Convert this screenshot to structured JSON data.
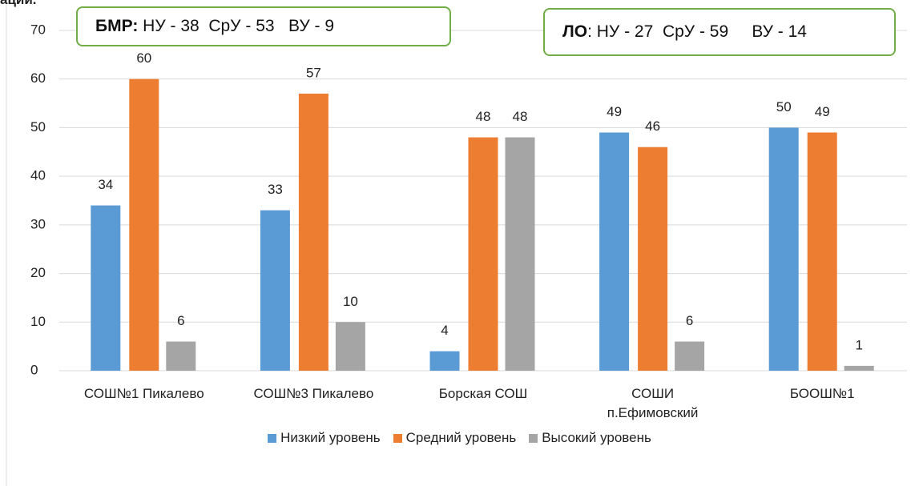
{
  "header_fragment": "ации.",
  "chart_data": {
    "type": "bar",
    "categories": [
      "СОШ№1 Пикалево",
      "СОШ№3 Пикалево",
      "Борская СОШ",
      "СОШИ\nп.Ефимовский",
      "БООШ№1"
    ],
    "series": [
      {
        "name": "Низкий уровень",
        "color": "#5b9bd5",
        "values": [
          34,
          33,
          4,
          49,
          50
        ]
      },
      {
        "name": "Средний уровень",
        "color": "#ed7d31",
        "values": [
          60,
          57,
          48,
          46,
          49
        ]
      },
      {
        "name": "Высокий уровень",
        "color": "#a5a5a5",
        "values": [
          6,
          10,
          48,
          6,
          1
        ]
      }
    ],
    "ylim": [
      0,
      70
    ],
    "yticks": [
      0,
      10,
      20,
      30,
      40,
      50,
      60,
      70
    ],
    "grid": true,
    "legend": "bottom",
    "annotations": [
      {
        "label": "БМР:",
        "text": " НУ - 38  СрУ - 53   ВУ - 9"
      },
      {
        "label": "ЛО",
        "text": ": НУ - 27  СрУ - 59     ВУ - 14"
      }
    ]
  }
}
